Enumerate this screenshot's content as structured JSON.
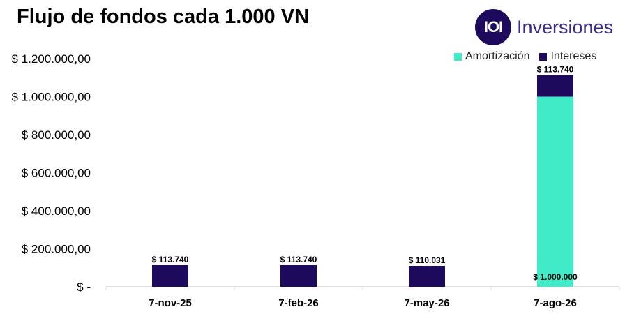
{
  "header": {
    "title": "Flujo de fondos cada 1.000 VN",
    "brand": {
      "logo_mark": "IOI",
      "name": "Inversiones"
    }
  },
  "colors": {
    "amortizacion": "#40ecc8",
    "intereses": "#1e0a5c",
    "axis": "#d9d9d9",
    "brand": "#3b2a88"
  },
  "legend": [
    {
      "label": "Amortización",
      "color": "#40ecc8"
    },
    {
      "label": "Intereses",
      "color": "#1e0a5c"
    }
  ],
  "chart_data": {
    "type": "bar",
    "stacked": true,
    "title": "Flujo de fondos cada 1.000 VN",
    "categories": [
      "7-nov-25",
      "7-feb-26",
      "7-may-26",
      "7-ago-26"
    ],
    "series": [
      {
        "name": "Amortización",
        "values": [
          0,
          0,
          0,
          1000000
        ],
        "labels": [
          "",
          "",
          "",
          "$ 1.000.000"
        ]
      },
      {
        "name": "Intereses",
        "values": [
          113740,
          113740,
          110031,
          113740
        ],
        "labels": [
          "$ 113.740",
          "$ 113.740",
          "$ 110.031",
          "$ 113.740"
        ]
      }
    ],
    "yticks": [
      {
        "value": 0,
        "label": "$ -"
      },
      {
        "value": 200000,
        "label": "$ 200.000,00"
      },
      {
        "value": 400000,
        "label": "$ 400.000,00"
      },
      {
        "value": 600000,
        "label": "$ 600.000,00"
      },
      {
        "value": 800000,
        "label": "$ 800.000,00"
      },
      {
        "value": 1000000,
        "label": "$ 1.000.000,00"
      },
      {
        "value": 1200000,
        "label": "$ 1.200.000,00"
      }
    ],
    "ylim": [
      0,
      1200000
    ],
    "grid": false,
    "legend_position": "top-right",
    "xlabel": "",
    "ylabel": ""
  }
}
